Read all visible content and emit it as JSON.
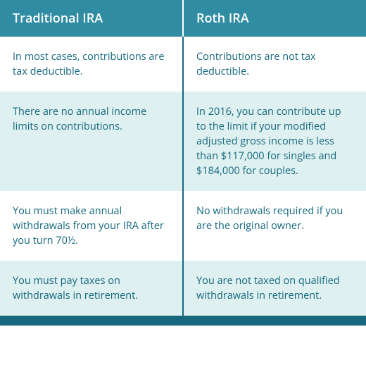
{
  "colors": {
    "header_bg": "#2f8ca3",
    "header_text": "#ffffff",
    "row_bg_light": "#ffffff",
    "row_bg_alt": "#dff0f1",
    "body_text": "#15687d",
    "divider": "#15687d",
    "footer": "#15687d"
  },
  "table": {
    "columns": [
      {
        "label": "Traditional IRA"
      },
      {
        "label": "Roth IRA"
      }
    ],
    "rows": [
      {
        "bg": "light",
        "cells": [
          "In most cases, contributions are tax deductible.",
          "Contributions are not tax deductible."
        ]
      },
      {
        "bg": "alt",
        "cells": [
          "There are no annual income limits on contributions.",
          "In 2016, you can contribute up to the limit if your modified adjusted gross income is less than $117,000 for singles and $184,000 for couples."
        ]
      },
      {
        "bg": "light",
        "cells": [
          "You must make annual withdrawals from your IRA after you turn 70½.",
          "No withdrawals required if you are the original owner."
        ]
      },
      {
        "bg": "alt",
        "cells": [
          "You must pay taxes on withdrawals in retirement.",
          "You are not taxed on qualified withdrawals in retirement."
        ]
      }
    ]
  }
}
